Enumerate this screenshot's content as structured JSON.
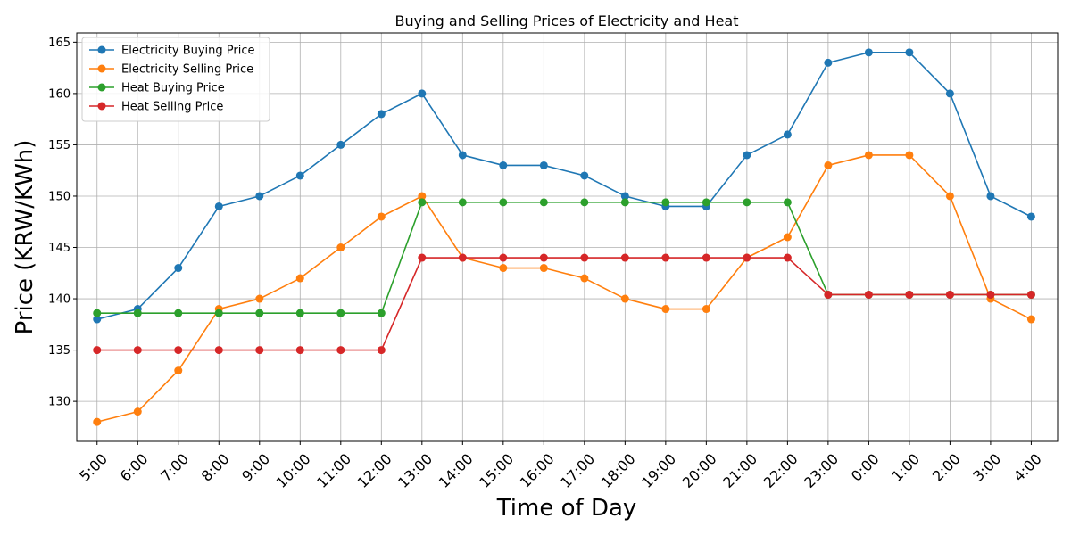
{
  "chart_data": {
    "type": "line",
    "title": "Buying and Selling Prices of Electricity and Heat",
    "xlabel": "Time of Day",
    "ylabel": "Price (KRW/KWh)",
    "ylim": [
      126.1,
      165.9
    ],
    "yticks": [
      130,
      135,
      140,
      145,
      150,
      155,
      160,
      165
    ],
    "grid": true,
    "legend_position": "top-left",
    "categories": [
      "5:00",
      "6:00",
      "7:00",
      "8:00",
      "9:00",
      "10:00",
      "11:00",
      "12:00",
      "13:00",
      "14:00",
      "15:00",
      "16:00",
      "17:00",
      "18:00",
      "19:00",
      "20:00",
      "21:00",
      "22:00",
      "23:00",
      "0:00",
      "1:00",
      "2:00",
      "3:00",
      "4:00"
    ],
    "series": [
      {
        "name": "Electricity Buying Price",
        "color": "#1f77b4",
        "values": [
          138,
          139,
          143,
          149,
          150,
          152,
          155,
          158,
          160,
          154,
          153,
          153,
          152,
          150,
          149,
          149,
          154,
          156,
          163,
          164,
          164,
          160,
          150,
          148
        ]
      },
      {
        "name": "Electricity Selling Price",
        "color": "#ff7f0e",
        "values": [
          128,
          129,
          133,
          139,
          140,
          142,
          145,
          148,
          150,
          144,
          143,
          143,
          142,
          140,
          139,
          139,
          144,
          146,
          153,
          154,
          154,
          150,
          140,
          138
        ]
      },
      {
        "name": "Heat Buying Price",
        "color": "#2ca02c",
        "values": [
          138.6,
          138.6,
          138.6,
          138.6,
          138.6,
          138.6,
          138.6,
          138.6,
          149.4,
          149.4,
          149.4,
          149.4,
          149.4,
          149.4,
          149.4,
          149.4,
          149.4,
          149.4,
          140.4,
          140.4,
          140.4,
          140.4,
          140.4,
          140.4
        ]
      },
      {
        "name": "Heat Selling Price",
        "color": "#d62728",
        "values": [
          135,
          135,
          135,
          135,
          135,
          135,
          135,
          135,
          144,
          144,
          144,
          144,
          144,
          144,
          144,
          144,
          144,
          144,
          140.4,
          140.4,
          140.4,
          140.4,
          140.4,
          140.4
        ]
      }
    ]
  }
}
